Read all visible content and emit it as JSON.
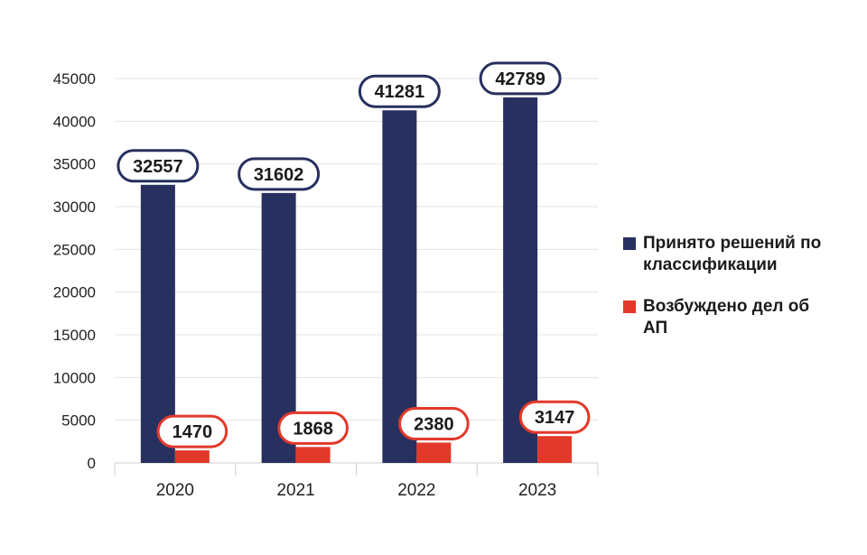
{
  "chart_data": {
    "type": "bar",
    "title": "",
    "xlabel": "",
    "ylabel": "",
    "categories": [
      "2020",
      "2021",
      "2022",
      "2023"
    ],
    "ylim": [
      0,
      45000
    ],
    "yticks": [
      0,
      5000,
      10000,
      15000,
      20000,
      25000,
      30000,
      35000,
      40000,
      45000
    ],
    "grid": true,
    "legend_position": "right",
    "series": [
      {
        "name": "Принято решений по классификации",
        "color": "#27305f",
        "values": [
          32557,
          31602,
          41281,
          42789
        ]
      },
      {
        "name": "Возбуждено дел об АП",
        "color": "#e2392b",
        "values": [
          1470,
          1868,
          2380,
          3147
        ]
      }
    ]
  }
}
